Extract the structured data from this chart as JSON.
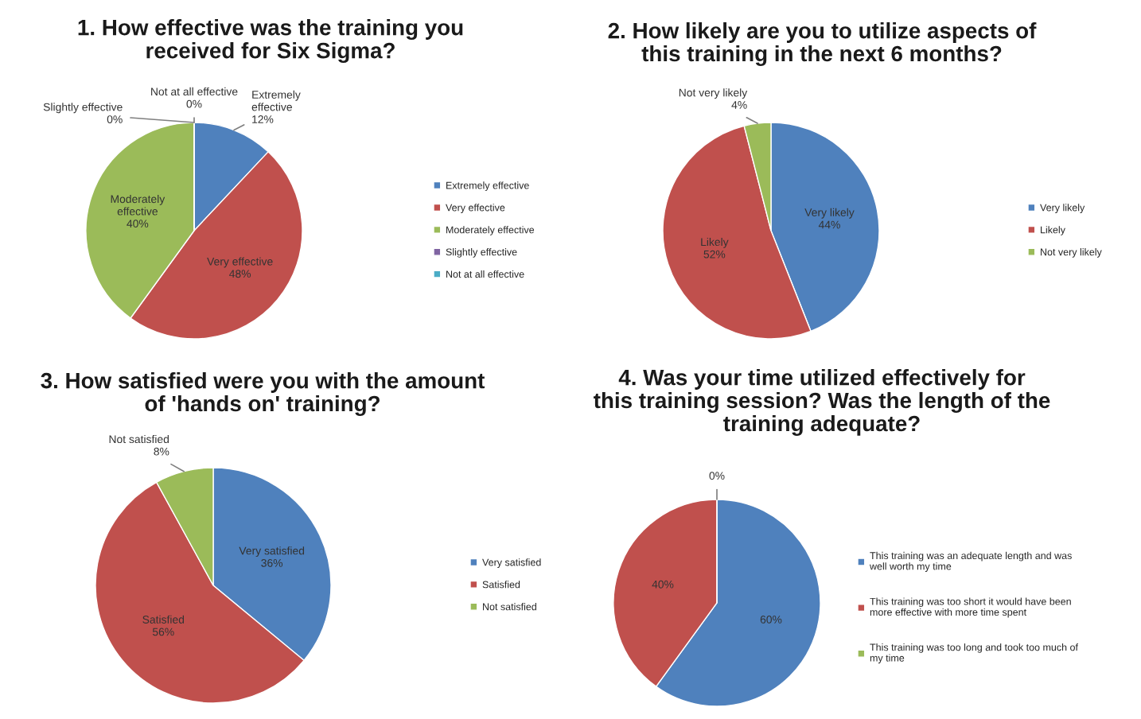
{
  "chart_data": [
    {
      "type": "pie",
      "title": "1. How effective was the training you\nreceived for Six Sigma?",
      "categories": [
        "Extremely effective",
        "Very effective",
        "Moderately effective",
        "Slightly effective",
        "Not at all effective"
      ],
      "values": [
        12,
        48,
        40,
        0,
        0
      ],
      "colors": [
        "#4f81bd",
        "#c0504d",
        "#9bbb59",
        "#8064a2",
        "#4bacc6"
      ],
      "value_labels": [
        "Extremely\neffective\n12%",
        "Very effective\n48%",
        "Moderately\neffective\n40%",
        "Slightly effective\n0%",
        "Not at all effective\n0%"
      ],
      "legend": "right"
    },
    {
      "type": "pie",
      "title": "2. How likely are you to utilize aspects of\nthis training in the next 6 months?",
      "categories": [
        "Very likely",
        "Likely",
        "Not very likely"
      ],
      "values": [
        44,
        52,
        4
      ],
      "colors": [
        "#4f81bd",
        "#c0504d",
        "#9bbb59"
      ],
      "value_labels": [
        "Very likely\n44%",
        "Likely\n52%",
        "Not very likely\n4%"
      ],
      "legend": "right"
    },
    {
      "type": "pie",
      "title": "3. How satisfied were you with the amount\nof 'hands on' training?",
      "categories": [
        "Very satisfied",
        "Satisfied",
        "Not satisfied"
      ],
      "values": [
        36,
        56,
        8
      ],
      "colors": [
        "#4f81bd",
        "#c0504d",
        "#9bbb59"
      ],
      "value_labels": [
        "Very satisfied\n36%",
        "Satisfied\n56%",
        "Not satisfied\n8%"
      ],
      "legend": "right"
    },
    {
      "type": "pie",
      "title": "4. Was your time utilized effectively for\nthis training session? Was the length of the\ntraining adequate?",
      "categories": [
        "This training was an adequate length and was well worth my time",
        "This training was too short it would have been more effective with more time spent",
        "This training was too long and took too much of my time"
      ],
      "values": [
        60,
        40,
        0
      ],
      "colors": [
        "#4f81bd",
        "#c0504d",
        "#9bbb59"
      ],
      "value_labels": [
        "60%",
        "40%",
        "0%"
      ],
      "legend": "right"
    }
  ]
}
